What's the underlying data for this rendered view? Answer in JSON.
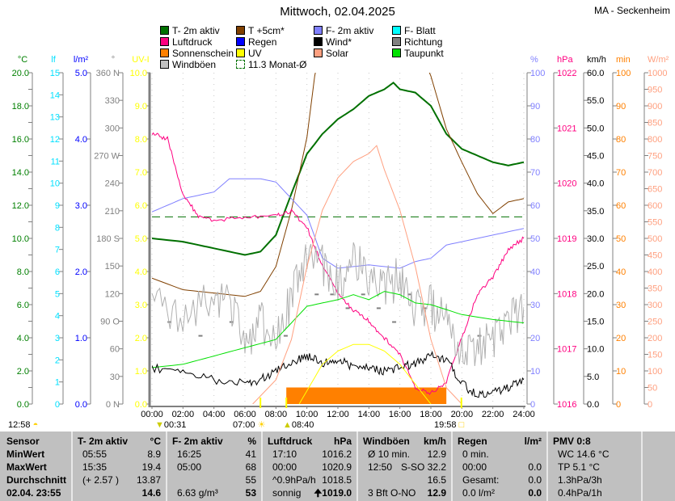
{
  "header": {
    "title": "Mittwoch, 02.04.2025",
    "station": "MA - Seckenheim"
  },
  "legend": [
    {
      "label": "T- 2m aktiv",
      "color": "#007000",
      "style": "box"
    },
    {
      "label": "T +5cm*",
      "color": "#804000",
      "style": "box"
    },
    {
      "label": "F- 2m aktiv",
      "color": "#8080ff",
      "style": "box"
    },
    {
      "label": "F- Blatt",
      "color": "#00ffff",
      "style": "box"
    },
    {
      "label": "Luftdruck",
      "color": "#ff0080",
      "style": "box"
    },
    {
      "label": "Regen",
      "color": "#0000ff",
      "style": "box"
    },
    {
      "label": "Wind*",
      "color": "#000000",
      "style": "box"
    },
    {
      "label": "Richtung",
      "color": "#808080",
      "style": "box"
    },
    {
      "label": "Sonnenschein",
      "color": "#ff8000",
      "style": "box"
    },
    {
      "label": "UV",
      "color": "#ffff00",
      "style": "box"
    },
    {
      "label": "Solar",
      "color": "#ffa080",
      "style": "box"
    },
    {
      "label": "Taupunkt",
      "color": "#00e000",
      "style": "box"
    },
    {
      "label": "Windböen",
      "color": "#c0c0c0",
      "style": "box"
    },
    {
      "label": "11.3 Monat-Ø",
      "color": "#007000",
      "style": "dashed"
    }
  ],
  "chart_data": {
    "type": "line",
    "title": "Mittwoch, 02.04.2025",
    "x_ticks": [
      "00:00",
      "02:00",
      "04:00",
      "06:00",
      "08:00",
      "10:00",
      "12:00",
      "14:00",
      "16:00",
      "18:00",
      "20:00",
      "22:00",
      "24:00"
    ],
    "xlim": [
      0,
      24
    ],
    "grid": "vertical dotted",
    "axes_left": [
      {
        "unit": "°C",
        "color": "#008000",
        "ticks": [
          "20.0",
          "",
          "18.0",
          "",
          "16.0",
          "",
          "14.0",
          "",
          "12.0",
          "",
          "10.0",
          "",
          "8.0",
          "",
          "6.0",
          "",
          "4.0",
          "",
          "2.0",
          "",
          "0.0"
        ]
      },
      {
        "unit": "lf",
        "color": "#00e0ff",
        "ticks": [
          "15",
          "14",
          "13",
          "12",
          "11",
          "10",
          "9",
          "8",
          "7",
          "6",
          "5",
          "4",
          "3",
          "2",
          "1",
          "0"
        ]
      },
      {
        "unit": "l/m²",
        "color": "#0000ff",
        "ticks": [
          "5.0",
          "4.0",
          "3.0",
          "2.0",
          "1.0",
          "0.0"
        ]
      },
      {
        "unit": "°",
        "color": "#808080",
        "ticks": [
          "360 N",
          "330",
          "300",
          "270 W",
          "240",
          "210",
          "180 S",
          "150",
          "120",
          "90 O",
          "60",
          "30",
          "0 N"
        ]
      },
      {
        "unit": "UV-I",
        "color": "#ffff00",
        "ticks": [
          "10.0",
          "9.0",
          "8.0",
          "7.0",
          "6.0",
          "5.0",
          "4.0",
          "3.0",
          "2.0",
          "1.0",
          "0.0"
        ]
      }
    ],
    "axes_right": [
      {
        "unit": "%",
        "color": "#8080ff",
        "ticks": [
          "100",
          "90",
          "80",
          "70",
          "60",
          "50",
          "40",
          "30",
          "20",
          "10",
          "0"
        ]
      },
      {
        "unit": "hPa",
        "color": "#ff0080",
        "ticks": [
          "1022",
          "1021",
          "1020",
          "1019",
          "1018",
          "1017",
          "1016"
        ]
      },
      {
        "unit": "km/h",
        "color": "#000000",
        "ticks": [
          "60.0",
          "55.0",
          "50.0",
          "45.0",
          "40.0",
          "35.0",
          "30.0",
          "25.0",
          "20.0",
          "15.0",
          "10.0",
          "5.0",
          "0.0"
        ]
      },
      {
        "unit": "min",
        "color": "#ff8000",
        "ticks": [
          "100",
          "90",
          "80",
          "70",
          "60",
          "50",
          "40",
          "30",
          "20",
          "10",
          "0"
        ]
      },
      {
        "unit": "W/m²",
        "color": "#ffa080",
        "ticks": [
          "1000",
          "950",
          "900",
          "850",
          "800",
          "750",
          "700",
          "650",
          "600",
          "550",
          "500",
          "450",
          "400",
          "350",
          "300",
          "250",
          "200",
          "150",
          "100",
          "50",
          "0"
        ]
      }
    ],
    "series": [
      {
        "name": "T- 2m aktiv",
        "axis": "°C",
        "range": [
          0,
          20
        ],
        "color": "#007000",
        "width": 2,
        "x": [
          0,
          2,
          4,
          6,
          7,
          8,
          9,
          10,
          11,
          12,
          13,
          14,
          15,
          15.58,
          16,
          17,
          18,
          19,
          20,
          21,
          22,
          23,
          24
        ],
        "y": [
          10.0,
          9.8,
          9.4,
          9.0,
          9.2,
          10.2,
          12.7,
          15.1,
          16.3,
          17.2,
          17.8,
          18.6,
          19.0,
          19.4,
          19.0,
          18.8,
          18.0,
          16.3,
          15.4,
          15.0,
          14.6,
          14.4,
          14.6
        ]
      },
      {
        "name": "T +5cm*",
        "axis": "°C",
        "range": [
          0,
          20
        ],
        "color": "#804000",
        "width": 1,
        "x": [
          0,
          2,
          4,
          6,
          7,
          8,
          9,
          10,
          10.5,
          11,
          17,
          18,
          19,
          20,
          21,
          22,
          23,
          24
        ],
        "y": [
          7.6,
          6.9,
          6.7,
          6.5,
          6.8,
          8.3,
          11.7,
          16.1,
          19.8,
          22,
          22,
          19.8,
          16.6,
          14.6,
          12.7,
          11.5,
          12.2,
          12.4
        ]
      },
      {
        "name": "F- 2m aktiv",
        "axis": "%",
        "range": [
          0,
          100
        ],
        "color": "#8080ff",
        "width": 1,
        "x": [
          0,
          2,
          4,
          5,
          6,
          7,
          8,
          9,
          10,
          11,
          12,
          14,
          16,
          17,
          18,
          19,
          20,
          22,
          24
        ],
        "y": [
          58,
          62,
          64,
          68,
          68,
          68,
          67,
          62,
          57,
          44,
          41,
          42,
          41,
          43,
          44,
          48,
          49,
          51,
          53
        ]
      },
      {
        "name": "Luftdruck",
        "axis": "hPa",
        "range": [
          1016,
          1022
        ],
        "color": "#ff0080",
        "width": 1,
        "x": [
          0,
          1,
          2,
          3,
          4,
          6,
          8,
          9,
          10,
          11,
          12,
          13,
          14,
          15,
          16,
          17,
          18,
          19,
          20,
          21,
          22,
          23,
          24
        ],
        "y": [
          1020.9,
          1020.8,
          1019.8,
          1019.4,
          1019.3,
          1019.4,
          1019.4,
          1019.5,
          1019.2,
          1018.5,
          1018.0,
          1017.7,
          1017.5,
          1017.2,
          1016.9,
          1016.3,
          1016.2,
          1016.4,
          1017.2,
          1018.0,
          1018.3,
          1018.8,
          1019.0
        ]
      },
      {
        "name": "Windböen",
        "axis": "km/h",
        "range": [
          0,
          60
        ],
        "color": "#b0b0b0",
        "width": 1,
        "x": [
          0,
          2,
          4,
          5,
          6,
          7,
          8,
          9,
          10,
          11,
          12,
          13,
          14,
          15,
          16,
          17,
          18,
          19,
          20,
          21,
          22,
          23,
          24
        ],
        "y": [
          17.6,
          16.1,
          20.5,
          17.6,
          11.7,
          14.6,
          13.2,
          19.0,
          26.4,
          24.9,
          22.0,
          26.4,
          23.4,
          20.5,
          23.4,
          17.6,
          17.6,
          14.6,
          8.8,
          10.2,
          11.7,
          14.6,
          17.6
        ]
      },
      {
        "name": "Taupunkt",
        "axis": "°C",
        "range": [
          0,
          20
        ],
        "color": "#00e000",
        "width": 1,
        "x": [
          0,
          2,
          4,
          6,
          8,
          9,
          10,
          11,
          12,
          13,
          14,
          15,
          16,
          17,
          18,
          20,
          22,
          24
        ],
        "y": [
          2.2,
          2.4,
          2.9,
          3.4,
          3.9,
          4.9,
          5.9,
          6.1,
          6.3,
          6.6,
          6.3,
          6.8,
          6.6,
          6.1,
          6.0,
          5.4,
          5.1,
          4.9
        ]
      },
      {
        "name": "Wind*",
        "axis": "km/h",
        "range": [
          0,
          60
        ],
        "color": "#000000",
        "width": 1,
        "x": [
          0,
          2,
          4,
          6,
          7,
          8,
          9,
          10,
          11,
          12,
          13,
          14,
          15,
          16,
          17,
          18,
          19,
          20,
          21,
          22,
          23,
          24
        ],
        "y": [
          6.6,
          5.9,
          4.4,
          3.7,
          4.4,
          5.9,
          7.3,
          8.8,
          7.3,
          8.1,
          6.6,
          6.6,
          5.9,
          6.6,
          7.3,
          8.8,
          8.1,
          3.7,
          1.5,
          2.2,
          2.9,
          4.4
        ]
      },
      {
        "name": "Solar",
        "axis": "W/m²",
        "range": [
          0,
          1000
        ],
        "color": "#ffa080",
        "width": 1,
        "x": [
          6.5,
          8,
          9,
          10,
          11,
          12,
          13,
          14,
          14.5,
          15,
          16,
          17,
          18,
          19,
          20
        ],
        "y": [
          0,
          73,
          195,
          415,
          585,
          683,
          732,
          756,
          780,
          707,
          585,
          415,
          195,
          49,
          0
        ]
      },
      {
        "name": "UV",
        "axis": "UV-I",
        "range": [
          0,
          10
        ],
        "color": "#ffff00",
        "width": 1,
        "x": [
          9.5,
          11,
          12,
          13,
          14,
          15,
          16,
          17,
          18
        ],
        "y": [
          0,
          1.2,
          1.6,
          1.8,
          1.8,
          1.6,
          1.2,
          0.6,
          0
        ]
      }
    ],
    "sunshine": {
      "axis": "min",
      "range": [
        0,
        100
      ],
      "color": "#ff8000",
      "start": 8.67,
      "end": 19.0,
      "value": 5
    },
    "monthly_mean": {
      "label": "11.3 Monat-Ø",
      "value": 11.3,
      "axis": "°C",
      "color": "#007000"
    },
    "direction_dots": {
      "axis": "°",
      "color": "#808080",
      "x": [
        1,
        3,
        5,
        8.5,
        10.5,
        11.5,
        12.5,
        13.5,
        14.5,
        15.5,
        16.5,
        17.5,
        21
      ],
      "y": [
        90,
        75,
        90,
        75,
        120,
        120,
        105,
        120,
        105,
        90,
        120,
        105,
        75
      ]
    }
  },
  "astro": {
    "moonrise": "12:58",
    "moonset": "00:31",
    "sunrise": "07:00",
    "sunshine_start": "08:40",
    "sunset": "19:58"
  },
  "table": {
    "columns": [
      {
        "rows": [
          [
            "Sensor",
            ""
          ],
          [
            "MinWert",
            ""
          ],
          [
            "MaxWert",
            ""
          ],
          [
            "Durchschnitt",
            ""
          ],
          [
            "02.04. 23:55",
            ""
          ]
        ],
        "boldAll": true
      },
      {
        "rows": [
          [
            "T- 2m aktiv",
            "°C"
          ],
          [
            "05:55",
            "8.9"
          ],
          [
            "15:35",
            "19.4"
          ],
          [
            "(+ 2.57 )",
            "13.87"
          ],
          [
            "",
            "14.6"
          ]
        ]
      },
      {
        "rows": [
          [
            "F- 2m aktiv",
            "%"
          ],
          [
            "16:25",
            "41"
          ],
          [
            "05:00",
            "68"
          ],
          [
            "",
            "55"
          ],
          [
            "6.63 g/m³",
            "53"
          ]
        ]
      },
      {
        "rows": [
          [
            "Luftdruck",
            "hPa"
          ],
          [
            "17:10",
            "1016.2"
          ],
          [
            "00:00",
            "1020.9"
          ],
          [
            "^0.9hPa/h",
            "1018.5"
          ],
          [
            "sonnig",
            "🠉1019.0"
          ]
        ]
      },
      {
        "rows": [
          [
            "Windböen",
            "km/h"
          ],
          [
            "Ø 10 min.",
            "12.9"
          ],
          [
            "12:50",
            "S-SO 32.2"
          ],
          [
            "",
            "16.5"
          ],
          [
            "3 Bft O-NO",
            "12.9"
          ]
        ]
      },
      {
        "rows": [
          [
            "Regen",
            "l/m²"
          ],
          [
            "0 min.",
            ""
          ],
          [
            "00:00",
            "0.0"
          ],
          [
            "Gesamt:",
            "0.0"
          ],
          [
            "0.0 l/m²",
            "0.0"
          ]
        ]
      },
      {
        "rows": [
          [
            "PMV 0:8",
            ""
          ],
          [
            "WC 14.6 °C",
            ""
          ],
          [
            "TP 5.1 °C",
            ""
          ],
          [
            "1.3hPa/3h",
            ""
          ],
          [
            "0.4hPa/1h",
            ""
          ]
        ]
      }
    ]
  }
}
